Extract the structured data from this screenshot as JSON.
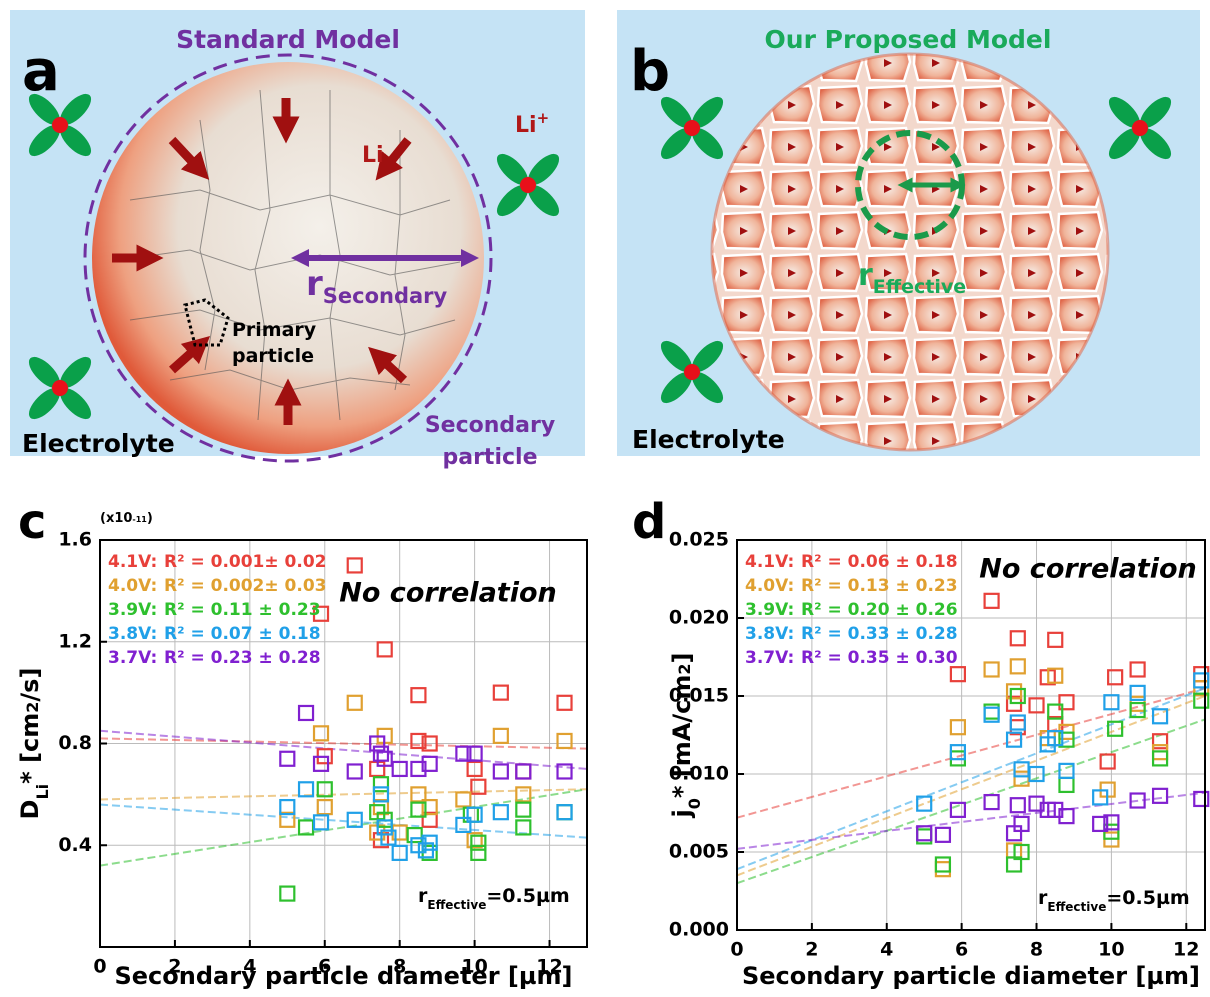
{
  "panels": {
    "a": {
      "label": "a",
      "title": "Standard Model",
      "li": "Li",
      "li_ion": [
        "Li",
        "+"
      ],
      "radius": [
        "r",
        "Secondary"
      ],
      "primary": [
        "Primary",
        "particle"
      ],
      "secondary": [
        "Secondary",
        "particle"
      ],
      "electrolyte": "Electrolyte"
    },
    "b": {
      "label": "b",
      "title": "Our Proposed Model",
      "radius": [
        "r",
        "Effective"
      ],
      "electrolyte": "Electrolyte"
    }
  },
  "chart_data": [
    {
      "type": "scatter",
      "panel_label": "c",
      "multiplier": [
        "(x10",
        "-11",
        ")"
      ],
      "xlabel": "Secondary particle diameter [µm]",
      "ylabel": [
        "D",
        "Li",
        "* [cm",
        "2",
        "/s]"
      ],
      "annotation": "No correlation",
      "note": [
        "r",
        "Effective",
        "=0.5µm"
      ],
      "xlim": [
        0,
        13
      ],
      "xticks": [
        0,
        2,
        4,
        6,
        8,
        10,
        12
      ],
      "ylim": [
        0,
        1.6
      ],
      "yticks": [
        0.4,
        0.8,
        1.2,
        1.6
      ],
      "grid": true,
      "series": [
        {
          "name": "4.1V:",
          "r2": "R² = 0.001± 0.02",
          "color": "#e8403a",
          "x": [
            6.8,
            5.9,
            7.6,
            8.5,
            10.7,
            12.4,
            8.5,
            8.8,
            7.5,
            8.8,
            10,
            10.1,
            11.3,
            7.4,
            6
          ],
          "values": [
            1.5,
            1.31,
            1.17,
            0.99,
            1.0,
            0.96,
            0.81,
            0.8,
            0.42,
            0.5,
            0.7,
            0.63,
            0.69,
            0.7,
            0.75
          ],
          "trend_x": [
            0,
            13
          ],
          "trend_values": [
            0.82,
            0.78
          ]
        },
        {
          "name": "4.0V:",
          "r2": "R² = 0.002± 0.03",
          "color": "#e0a030",
          "x": [
            6.8,
            5.9,
            7.6,
            10.7,
            12.4,
            5,
            7.5,
            8.5,
            8.8,
            9.7,
            11.3,
            7.4,
            10,
            6,
            8
          ],
          "values": [
            0.96,
            0.84,
            0.83,
            0.83,
            0.81,
            0.5,
            0.55,
            0.6,
            0.55,
            0.58,
            0.6,
            0.45,
            0.42,
            0.55,
            0.45
          ],
          "trend_x": [
            0,
            13
          ],
          "trend_values": [
            0.58,
            0.62
          ]
        },
        {
          "name": "3.9V:",
          "r2": "R² = 0.11 ± 0.23",
          "color": "#2ec02e",
          "x": [
            5,
            5.5,
            6,
            7.5,
            7.6,
            8.5,
            8.8,
            10.1,
            10.1,
            11.3,
            11.3,
            7.4,
            8.4,
            9.9,
            12.4
          ],
          "values": [
            0.21,
            0.47,
            0.62,
            0.64,
            0.5,
            0.54,
            0.37,
            0.41,
            0.37,
            0.54,
            0.47,
            0.53,
            0.44,
            0.52,
            0.53
          ],
          "trend_x": [
            0,
            13
          ],
          "trend_values": [
            0.32,
            0.62
          ]
        },
        {
          "name": "3.8V:",
          "r2": "R² = 0.07 ± 0.18",
          "color": "#20a0e8",
          "x": [
            5,
            5.5,
            5.9,
            6.8,
            7.5,
            7.6,
            7.7,
            8,
            8.5,
            8.7,
            8.8,
            9.7,
            10,
            10.7,
            12.4
          ],
          "values": [
            0.55,
            0.62,
            0.49,
            0.5,
            0.6,
            0.47,
            0.43,
            0.37,
            0.4,
            0.38,
            0.41,
            0.48,
            0.52,
            0.53,
            0.53
          ],
          "trend_x": [
            0,
            13
          ],
          "trend_values": [
            0.56,
            0.43
          ]
        },
        {
          "name": "3.7V:",
          "r2": "R² = 0.23 ± 0.28",
          "color": "#8020d0",
          "x": [
            5,
            5.5,
            5.9,
            6.8,
            7.4,
            7.5,
            7.6,
            8,
            8.5,
            8.8,
            9.7,
            10,
            10.7,
            11.3,
            12.4
          ],
          "values": [
            0.74,
            0.92,
            0.72,
            0.69,
            0.8,
            0.76,
            0.74,
            0.7,
            0.7,
            0.72,
            0.76,
            0.76,
            0.69,
            0.69,
            0.69
          ],
          "trend_x": [
            0,
            13
          ],
          "trend_values": [
            0.85,
            0.7
          ]
        }
      ]
    },
    {
      "type": "scatter",
      "panel_label": "d",
      "xlabel": "Secondary particle diameter [µm]",
      "ylabel": [
        "j",
        "0",
        "* [mA/cm",
        "2",
        "]"
      ],
      "annotation": "No correlation",
      "note": [
        "r",
        "Effective",
        "=0.5µm"
      ],
      "xlim": [
        0,
        12.5
      ],
      "xticks": [
        0,
        2,
        4,
        6,
        8,
        10,
        12
      ],
      "ylim": [
        0,
        0.025
      ],
      "yticks": [
        {
          "value": 0,
          "label": "0.000"
        },
        0.005,
        {
          "value": 0.01,
          "label": "0.010"
        },
        0.015,
        {
          "value": 0.02,
          "label": "0.020"
        },
        0.025
      ],
      "grid": true,
      "series": [
        {
          "name": "4.1V:",
          "r2": "R² = 0.06 ± 0.18",
          "color": "#e8403a",
          "x": [
            5.9,
            6.8,
            7.5,
            8.5,
            8.3,
            8.8,
            7.4,
            10.1,
            10.7,
            12.4,
            11.3,
            8,
            9.9,
            7.5,
            8.5
          ],
          "values": [
            0.0164,
            0.0211,
            0.0187,
            0.0186,
            0.0162,
            0.0146,
            0.0145,
            0.0162,
            0.0167,
            0.0164,
            0.0121,
            0.0144,
            0.0108,
            0.013,
            0.0132
          ],
          "trend_x": [
            0,
            12.5
          ],
          "trend_values": [
            0.0072,
            0.0155
          ]
        },
        {
          "name": "4.0V:",
          "r2": "R² = 0.13 ± 0.23",
          "color": "#e0a030",
          "x": [
            6.8,
            7.5,
            8.5,
            5.9,
            7.4,
            8.8,
            10,
            5.5,
            12.4,
            11.3,
            7.6,
            8.3,
            10.7,
            9.9,
            7.4
          ],
          "values": [
            0.0167,
            0.0169,
            0.0163,
            0.013,
            0.0153,
            0.0127,
            0.0058,
            0.0039,
            0.0155,
            0.0114,
            0.0097,
            0.0123,
            0.0145,
            0.009,
            0.0051
          ],
          "trend_x": [
            0,
            12.5
          ],
          "trend_values": [
            0.0035,
            0.015
          ]
        },
        {
          "name": "3.9V:",
          "r2": "R² = 0.20 ± 0.26",
          "color": "#2ec02e",
          "x": [
            5,
            5.5,
            5.9,
            6.8,
            7.5,
            7.4,
            7.6,
            8.5,
            8.8,
            8.8,
            10.1,
            10.7,
            11.3,
            12.4,
            10
          ],
          "values": [
            0.006,
            0.0042,
            0.011,
            0.014,
            0.015,
            0.0042,
            0.005,
            0.014,
            0.0122,
            0.0093,
            0.0129,
            0.0141,
            0.011,
            0.0147,
            0.0063
          ],
          "trend_x": [
            0,
            12.5
          ],
          "trend_values": [
            0.003,
            0.0135
          ]
        },
        {
          "name": "3.8V:",
          "r2": "R² = 0.33 ± 0.28",
          "color": "#20a0e8",
          "x": [
            5,
            5.9,
            6.8,
            7.4,
            7.5,
            7.6,
            8,
            8.3,
            8.5,
            8.8,
            9.7,
            10,
            10.7,
            11.3,
            12.4
          ],
          "values": [
            0.0081,
            0.0114,
            0.0138,
            0.0122,
            0.0133,
            0.0103,
            0.01,
            0.0119,
            0.0123,
            0.0102,
            0.0085,
            0.0146,
            0.0152,
            0.0137,
            0.016
          ],
          "trend_x": [
            0,
            12.5
          ],
          "trend_values": [
            0.0039,
            0.0155
          ]
        },
        {
          "name": "3.7V:",
          "r2": "R² = 0.35 ± 0.30",
          "color": "#8020d0",
          "x": [
            5,
            5.5,
            5.9,
            6.8,
            7.4,
            7.5,
            7.6,
            8,
            8.3,
            8.5,
            8.8,
            9.7,
            10,
            10.7,
            11.3,
            12.4
          ],
          "values": [
            0.0062,
            0.0061,
            0.0077,
            0.0082,
            0.0062,
            0.008,
            0.0068,
            0.0081,
            0.0077,
            0.0077,
            0.0073,
            0.0068,
            0.0069,
            0.0083,
            0.0086,
            0.0084
          ],
          "trend_x": [
            0,
            12.5
          ],
          "trend_values": [
            0.0052,
            0.0088
          ]
        }
      ]
    }
  ]
}
